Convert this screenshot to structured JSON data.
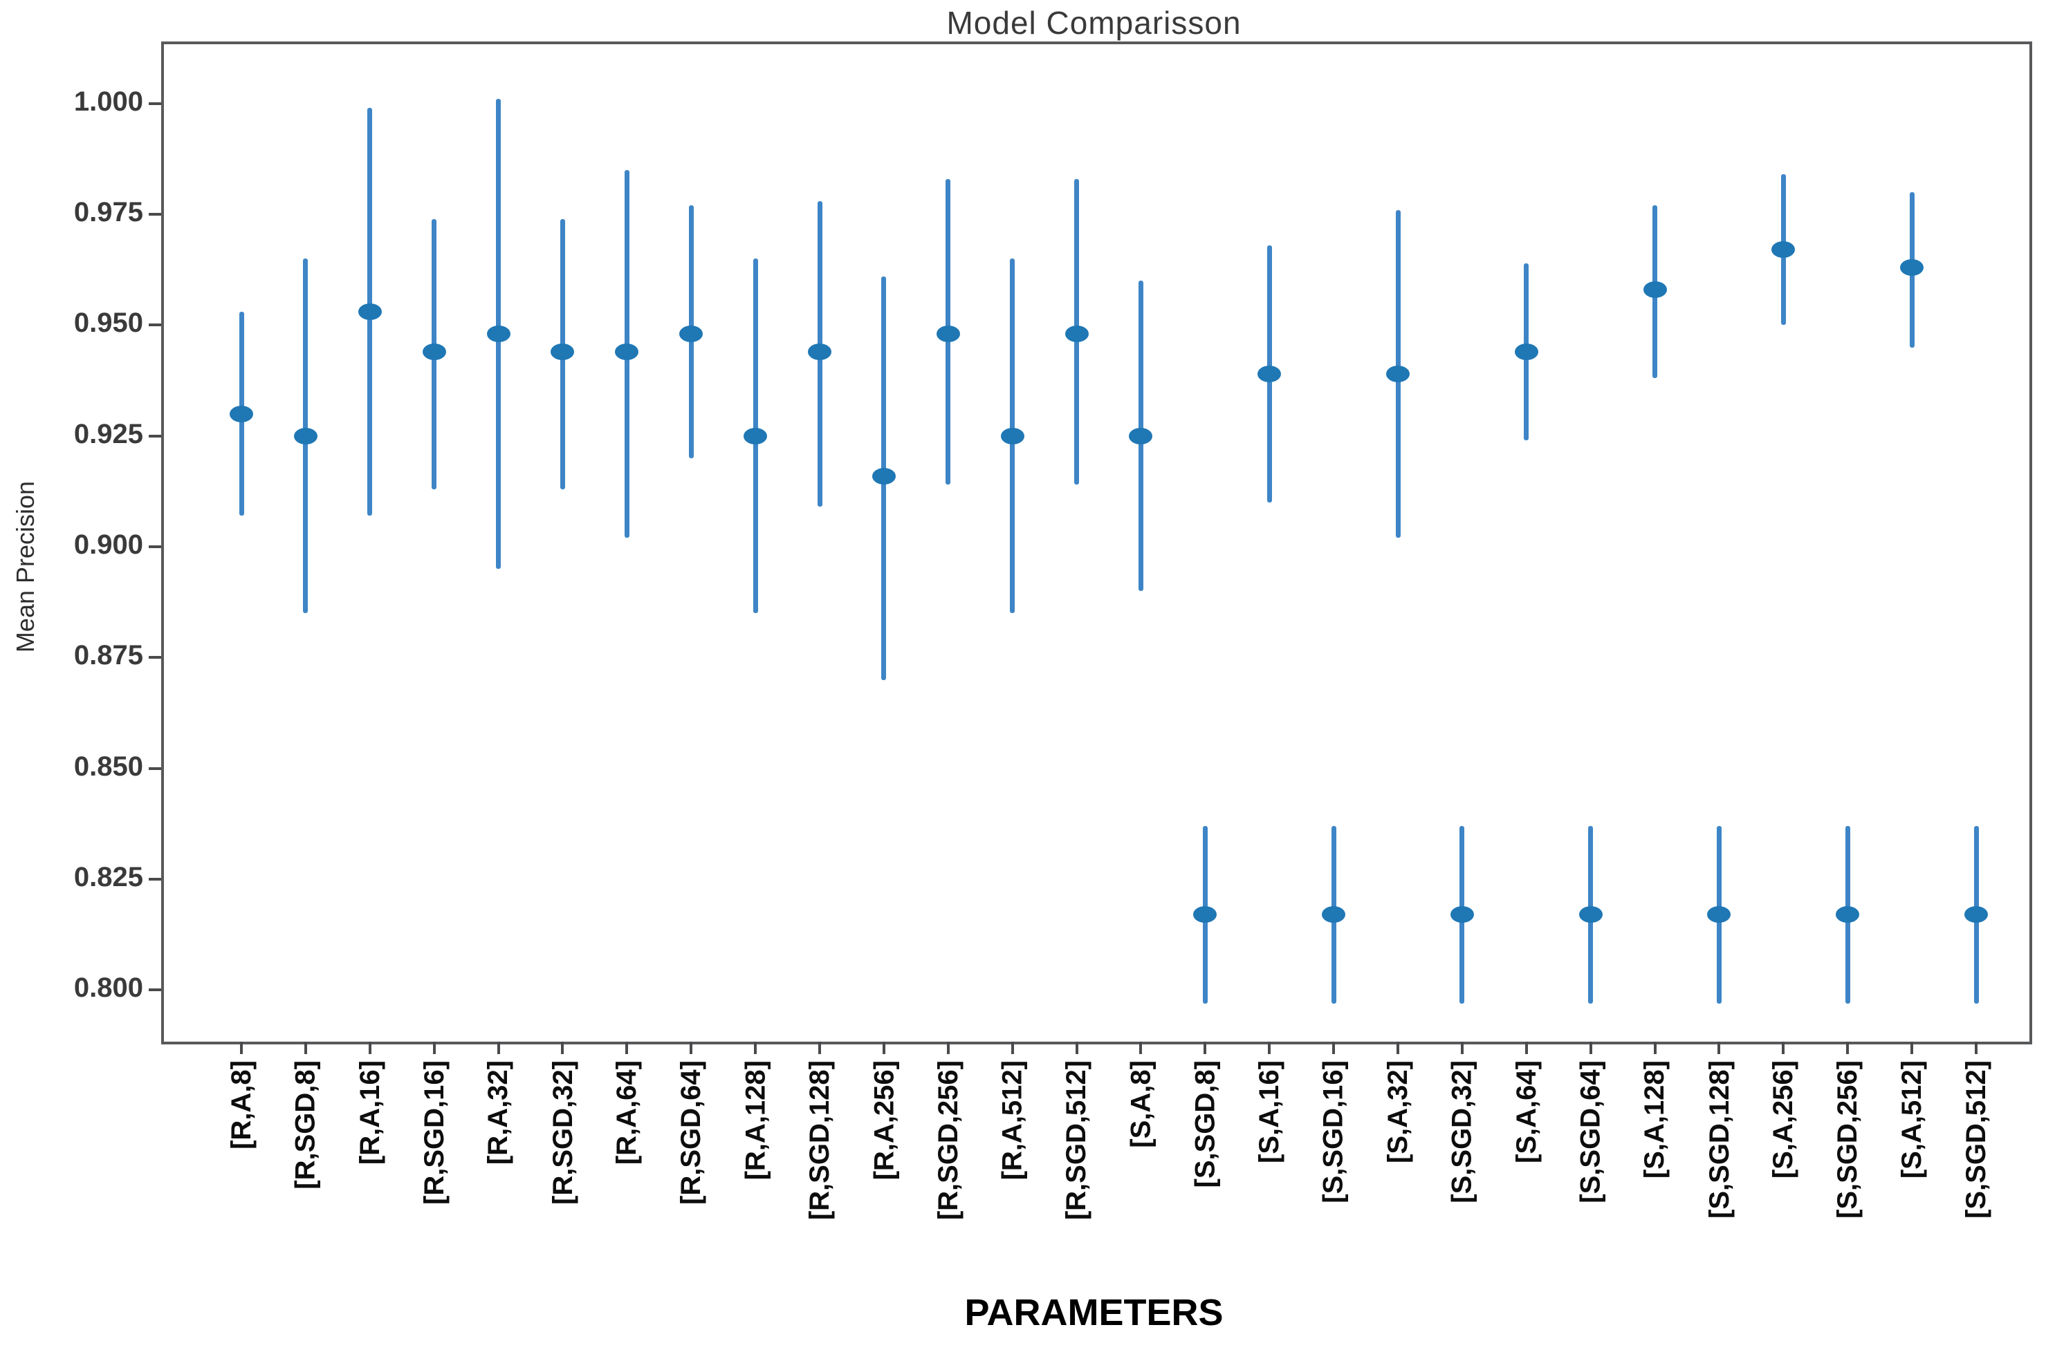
{
  "chart_data": {
    "type": "scatter",
    "variant": "vertical-errorbar",
    "title": "Model Comparisson",
    "xlabel": "PARAMETERS",
    "ylabel": "Mean Precision",
    "grid": false,
    "legend": false,
    "marker_color": "#1f77b4",
    "errorbar_color": "#3d85c6",
    "ylim": [
      0.789,
      1.014
    ],
    "ytick_labels": [
      "0.800",
      "0.825",
      "0.850",
      "0.875",
      "0.900",
      "0.925",
      "0.950",
      "0.975",
      "1.000"
    ],
    "categories": [
      "[R,A,8]",
      "[R,SGD,8]",
      "[R,A,16]",
      "[R,SGD,16]",
      "[R,A,32]",
      "[R,SGD,32]",
      "[R,A,64]",
      "[R,SGD,64]",
      "[R,A,128]",
      "[R,SGD,128]",
      "[R,A,256]",
      "[R,SGD,256]",
      "[R,A,512]",
      "[R,SGD,512]",
      "[S,A,8]",
      "[S,SGD,8]",
      "[S,A,16]",
      "[S,SGD,16]",
      "[S,A,32]",
      "[S,SGD,32]",
      "[S,A,64]",
      "[S,SGD,64]",
      "[S,A,128]",
      "[S,SGD,128]",
      "[S,A,256]",
      "[S,SGD,256]",
      "[S,A,512]",
      "[S,SGD,512]"
    ],
    "means": [
      0.93,
      0.925,
      0.953,
      0.944,
      0.948,
      0.944,
      0.944,
      0.948,
      0.925,
      0.944,
      0.916,
      0.948,
      0.925,
      0.948,
      0.925,
      0.817,
      0.939,
      0.817,
      0.939,
      0.817,
      0.944,
      0.817,
      0.958,
      0.817,
      0.967,
      0.817,
      0.963,
      0.817
    ],
    "err_low": [
      0.907,
      0.885,
      0.907,
      0.913,
      0.895,
      0.913,
      0.902,
      0.92,
      0.885,
      0.909,
      0.87,
      0.914,
      0.885,
      0.914,
      0.89,
      0.797,
      0.91,
      0.797,
      0.902,
      0.797,
      0.924,
      0.797,
      0.938,
      0.797,
      0.95,
      0.797,
      0.945,
      0.797
    ],
    "err_high": [
      0.953,
      0.965,
      0.999,
      0.974,
      1.001,
      0.974,
      0.985,
      0.977,
      0.965,
      0.978,
      0.961,
      0.983,
      0.965,
      0.983,
      0.96,
      0.837,
      0.968,
      0.837,
      0.976,
      0.837,
      0.964,
      0.837,
      0.977,
      0.837,
      0.984,
      0.837,
      0.98,
      0.837
    ]
  }
}
